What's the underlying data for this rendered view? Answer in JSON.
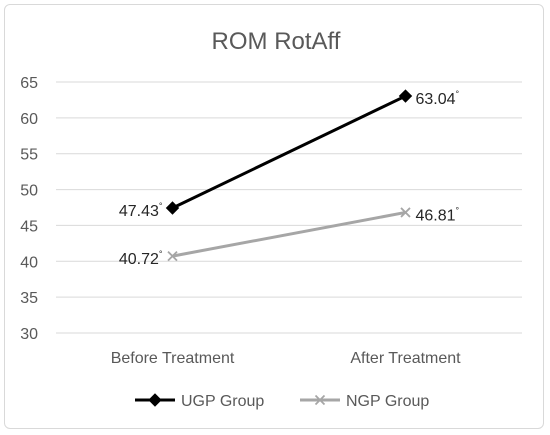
{
  "chart_data": {
    "type": "line",
    "title": "ROM RotAff",
    "categories": [
      "Before Treatment",
      "After Treatment"
    ],
    "ylim": [
      30,
      65
    ],
    "yticks": [
      30,
      35,
      40,
      45,
      50,
      55,
      60,
      65
    ],
    "grid": true,
    "legend_position": "bottom",
    "degree_mark": "°",
    "series": [
      {
        "name": "UGP Group",
        "values": [
          47.43,
          63.04
        ],
        "labels": [
          "47.43",
          "63.04"
        ],
        "color": "#000000",
        "marker": "diamond"
      },
      {
        "name": "NGP Group",
        "values": [
          40.72,
          46.81
        ],
        "labels": [
          "40.72",
          "46.81"
        ],
        "color": "#a6a6a6",
        "marker": "x"
      }
    ]
  }
}
